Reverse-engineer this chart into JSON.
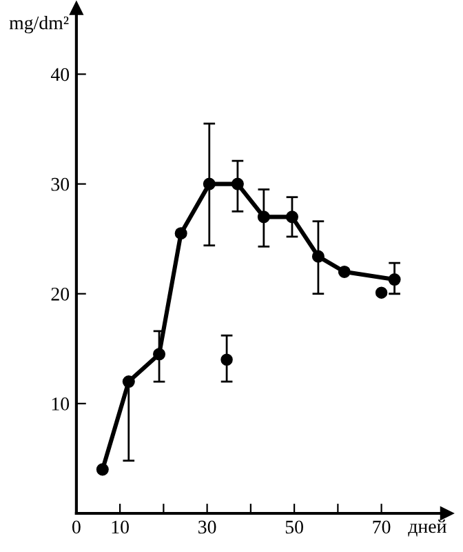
{
  "chart_data": {
    "type": "line",
    "ylabel": "mg/dm²",
    "xlabel": "дней",
    "xlim": [
      0,
      85
    ],
    "ylim": [
      0,
      46
    ],
    "xticks": [
      0,
      10,
      {
        "value": 20,
        "label": null
      },
      30,
      {
        "value": 40,
        "label": null
      },
      50,
      {
        "value": 60,
        "label": null
      },
      70
    ],
    "yticks": [
      10,
      20,
      30,
      40
    ],
    "grid": false,
    "marker": "circle",
    "line_style": "solid",
    "series": [
      {
        "color": "#000000",
        "x": [
          6,
          12,
          19,
          24,
          30.5,
          37,
          43,
          49.5,
          55.5,
          61.5,
          73
        ],
        "values": [
          4,
          12,
          14.5,
          25.5,
          30,
          30,
          27,
          27,
          23.4,
          22,
          21.3
        ],
        "errors": [
          null,
          [
            4.8,
            12
          ],
          [
            12,
            16.6
          ],
          null,
          [
            24.4,
            35.5
          ],
          [
            27.5,
            32.1
          ],
          [
            24.3,
            29.5
          ],
          [
            25.2,
            28.8
          ],
          [
            20,
            26.6
          ],
          null,
          [
            20,
            22.8
          ]
        ]
      },
      {
        "type": "scatter",
        "color": "#000000",
        "x": [
          34.5
        ],
        "values": [
          14
        ],
        "errors": [
          [
            12,
            16.2
          ]
        ]
      },
      {
        "type": "scatter",
        "color": "#000000",
        "x": [
          70
        ],
        "values": [
          20.1
        ]
      }
    ]
  }
}
